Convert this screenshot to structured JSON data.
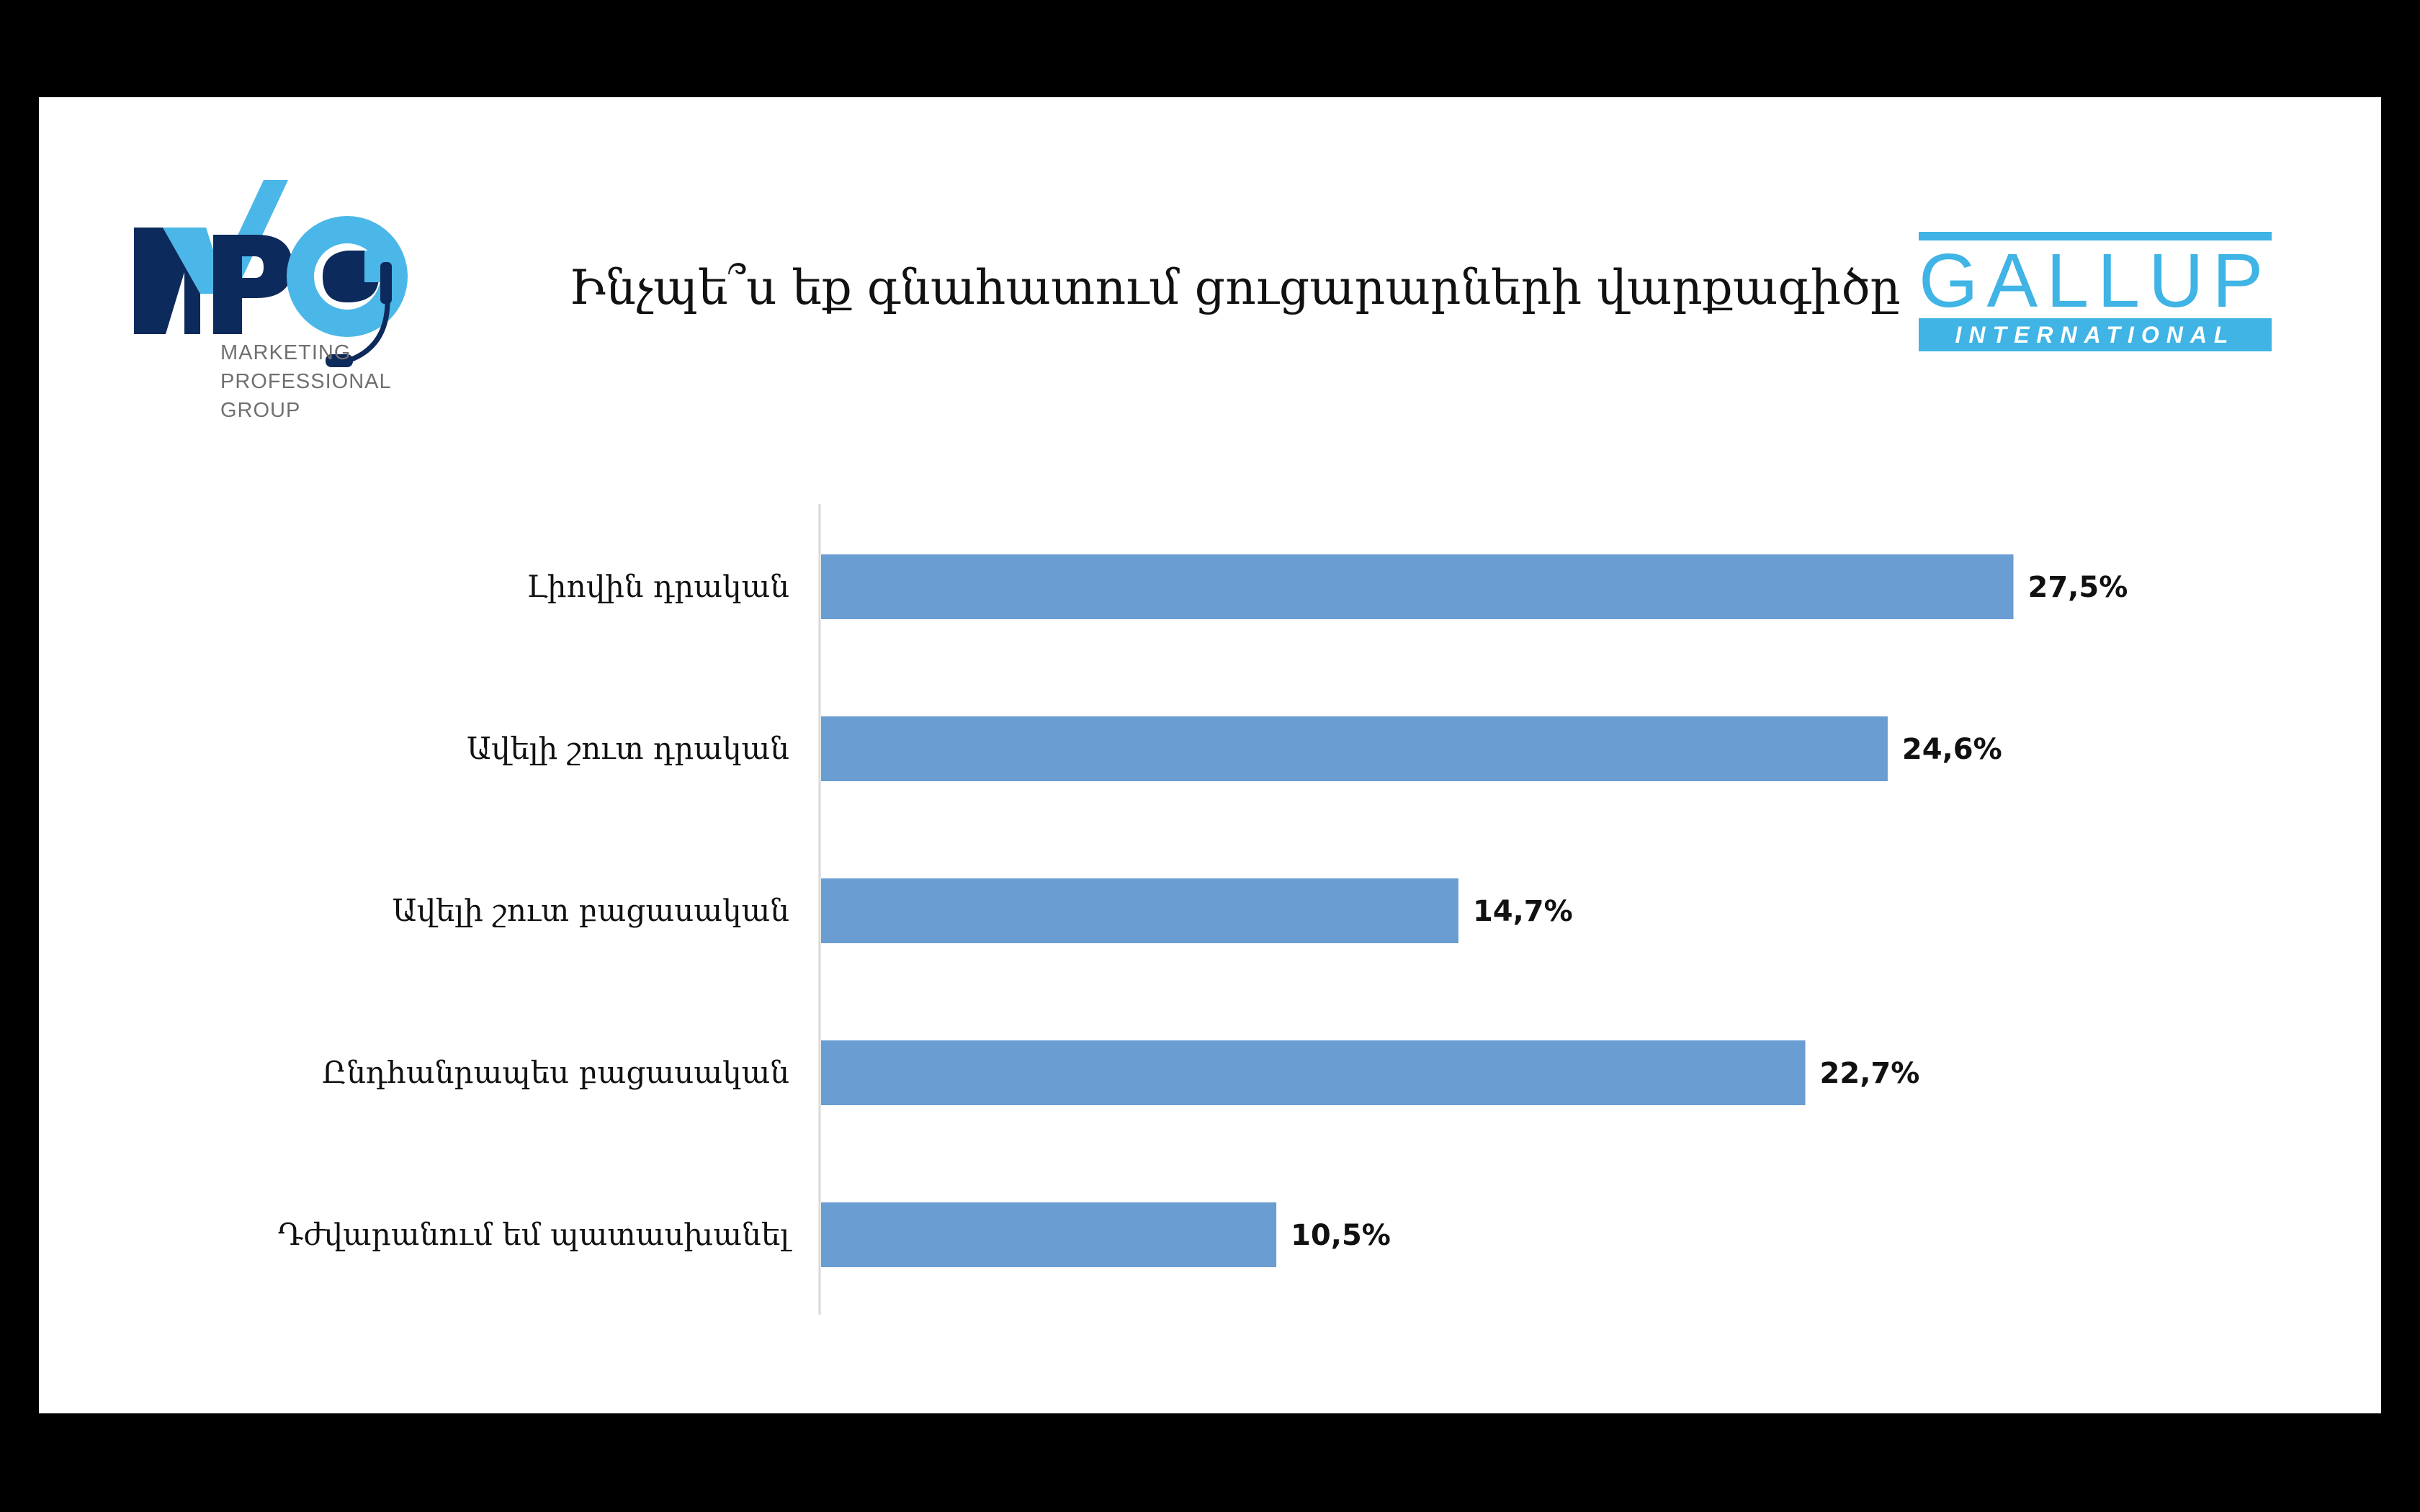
{
  "header": {
    "title": "Ինչպե՞ս եք գնահատում ցուցարարների վարքագիծը",
    "logo_left": {
      "wordmark": "MPG",
      "subtitle_lines": [
        "MARKETING",
        "PROFESSIONAL",
        "GROUP"
      ]
    },
    "logo_right": {
      "wordmark": "GALLUP",
      "sub": "INTERNATIONAL"
    }
  },
  "colors": {
    "bar": "#6a9dd2",
    "mpg_dark": "#0d2a5c",
    "mpg_light": "#4bb7e8",
    "gallup": "#3fb4e5"
  },
  "chart_data": {
    "type": "bar",
    "orientation": "horizontal",
    "title": "Ինչպե՞ս եք գնահատում ցուցարարների վարքագիծը",
    "categories": [
      "Լիովին դրական",
      "Ավելի շուտ դրական",
      "Ավելի շուտ բացասական",
      "Ընդհանրապես բացասական",
      "Դժվարանում եմ պատասխանել"
    ],
    "values": [
      27.5,
      24.6,
      14.7,
      22.7,
      10.5
    ],
    "value_labels": [
      "27,5%",
      "24,6%",
      "14,7%",
      "22,7%",
      "10,5%"
    ],
    "unit": "%",
    "xlim": [
      0,
      30
    ],
    "grid": false,
    "legend": "none"
  }
}
